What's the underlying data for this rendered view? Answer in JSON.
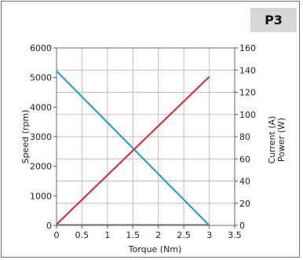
{
  "panel": {
    "badge": "P3"
  },
  "chart_data": {
    "type": "line",
    "xlabel": "Torque (Nm)",
    "xlim": [
      0,
      3.5
    ],
    "xticks": [
      "0",
      "0.5",
      "1",
      "1.5",
      "2",
      "2.5",
      "3",
      "3.5"
    ],
    "xtick_values": [
      0,
      0.5,
      1,
      1.5,
      2,
      2.5,
      3,
      3.5
    ],
    "left_axis": {
      "label": "Speed (rpm)",
      "lim": [
        0,
        6000
      ],
      "ticks": [
        "0",
        "1000",
        "2000",
        "3000",
        "4000",
        "5000",
        "6000"
      ],
      "tick_values": [
        0,
        1000,
        2000,
        3000,
        4000,
        5000,
        6000
      ]
    },
    "right_axis": {
      "labels": [
        "Current (A)",
        "Power (W)"
      ],
      "lim": [
        0,
        160
      ],
      "ticks": [
        "0",
        "20",
        "40",
        "60",
        "80",
        "100",
        "120",
        "140",
        "160"
      ],
      "tick_values": [
        0,
        20,
        40,
        60,
        80,
        100,
        120,
        140,
        160
      ]
    },
    "grid": true,
    "series": [
      {
        "axis": "left",
        "color": "#1a9bd7",
        "x": [
          0,
          3
        ],
        "y": [
          5220,
          0
        ]
      },
      {
        "axis": "right",
        "color": "#e0202a",
        "x": [
          0,
          3
        ],
        "y": [
          1,
          134
        ]
      },
      {
        "axis": "right",
        "color": "#6e6e6e",
        "x": [
          0,
          3
        ],
        "y": [
          0.4,
          0.4
        ]
      }
    ]
  }
}
